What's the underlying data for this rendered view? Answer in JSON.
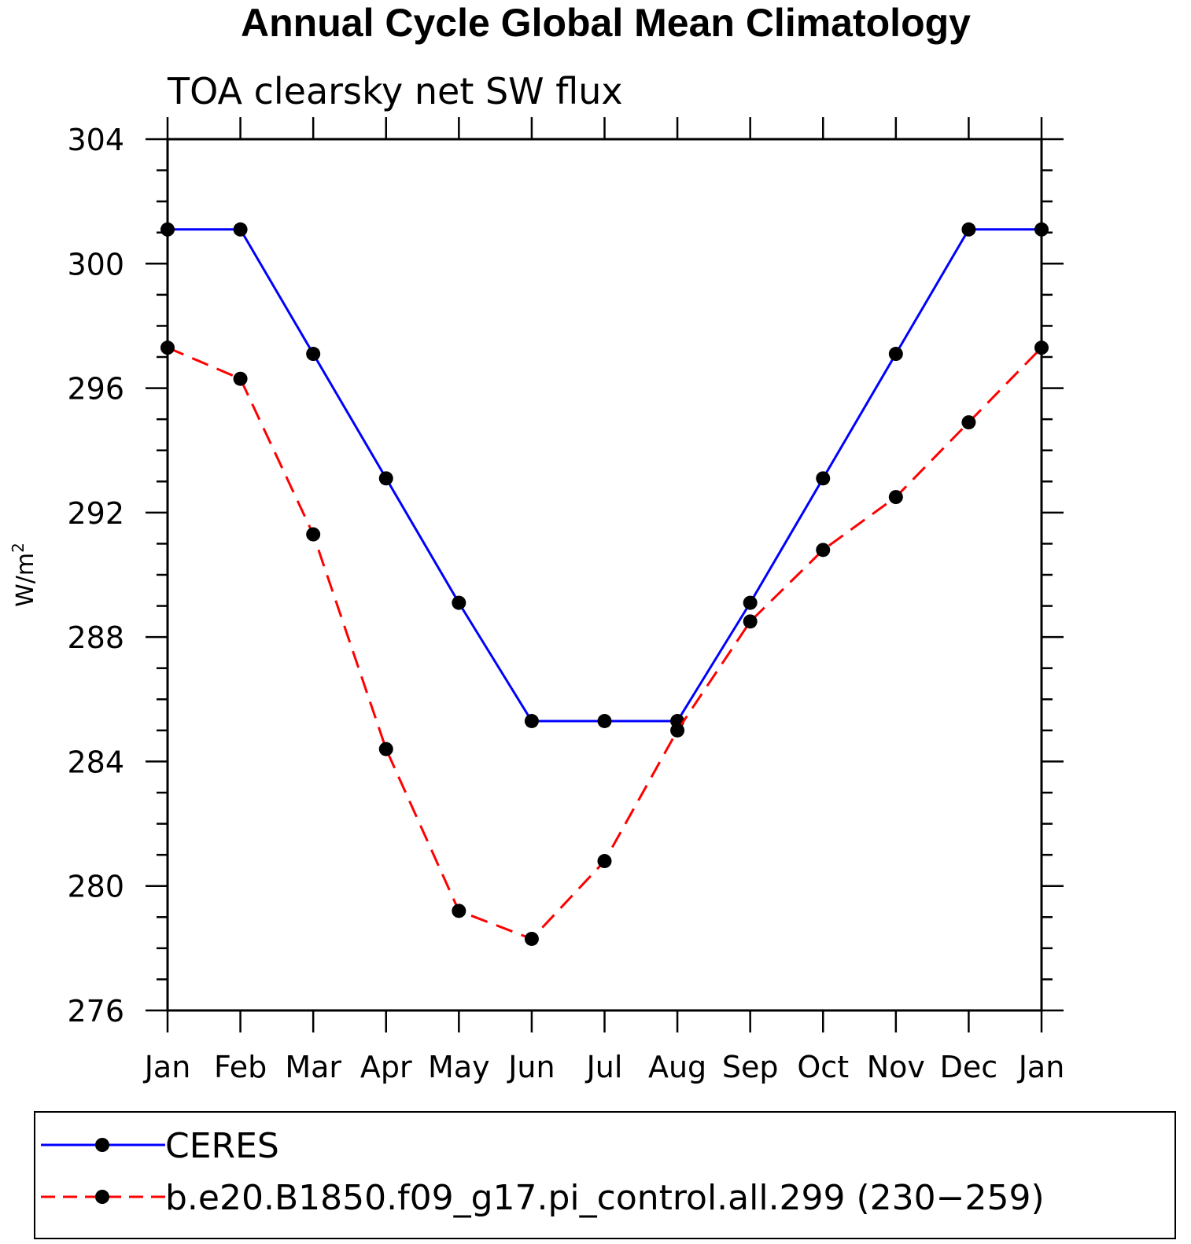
{
  "chart_data": {
    "type": "line",
    "title": "Annual Cycle Global Mean Climatology",
    "subtitle": "TOA clearsky net SW flux",
    "ylabel": "W/m",
    "ylabel_superscript": "2",
    "xlabel": "",
    "categories": [
      "Jan",
      "Feb",
      "Mar",
      "Apr",
      "May",
      "Jun",
      "Jul",
      "Aug",
      "Sep",
      "Oct",
      "Nov",
      "Dec",
      "Jan"
    ],
    "ylim": [
      276,
      304
    ],
    "yticks": [
      "276",
      "280",
      "284",
      "288",
      "292",
      "296",
      "300",
      "304"
    ],
    "grid": false,
    "legend_position": "bottom",
    "series": [
      {
        "name": "CERES",
        "color": "#0000ff",
        "dash": "solid",
        "marker": "filled-circle",
        "values": [
          301.1,
          301.1,
          297.1,
          293.1,
          289.1,
          285.3,
          285.3,
          285.3,
          289.1,
          293.1,
          297.1,
          301.1,
          301.1
        ]
      },
      {
        "name": "b.e20.B1850.f09_g17.pi_control.all.299 (230−259)",
        "color": "#ff0000",
        "dash": "dashed",
        "marker": "filled-circle",
        "values": [
          297.3,
          296.3,
          291.3,
          284.4,
          279.2,
          278.3,
          280.8,
          285.0,
          288.5,
          290.8,
          292.5,
          294.9,
          297.3
        ]
      }
    ]
  }
}
